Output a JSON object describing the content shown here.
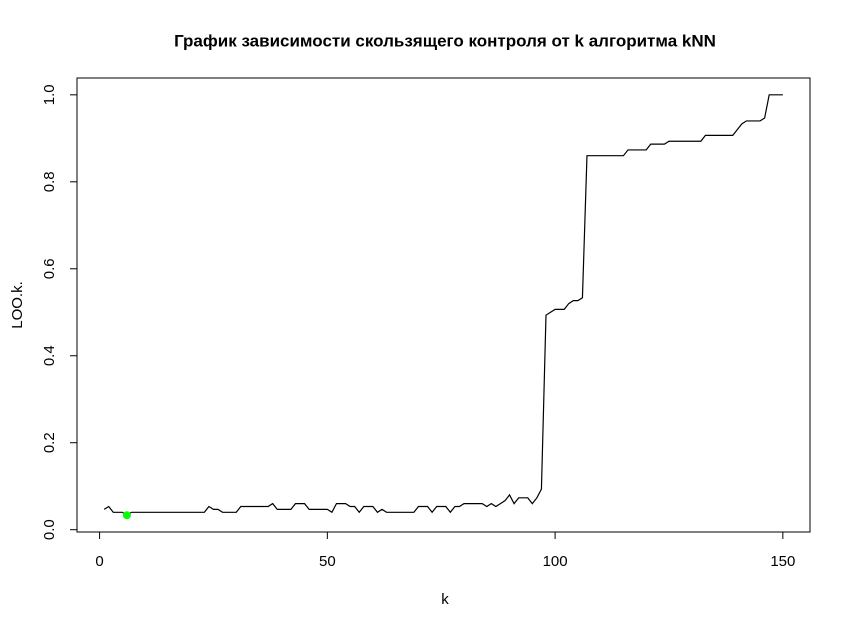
{
  "chart_data": {
    "type": "line",
    "title": "График зависимости скользящего контроля от k алгоритма kNN",
    "x_label": "k",
    "y_label": "LOO.k.",
    "x": [
      1,
      2,
      3,
      4,
      5,
      6,
      7,
      8,
      9,
      10,
      11,
      12,
      13,
      14,
      15,
      16,
      17,
      18,
      19,
      20,
      21,
      22,
      23,
      24,
      25,
      26,
      27,
      28,
      29,
      30,
      31,
      32,
      33,
      34,
      35,
      36,
      37,
      38,
      39,
      40,
      41,
      42,
      43,
      44,
      45,
      46,
      47,
      48,
      49,
      50,
      51,
      52,
      53,
      54,
      55,
      56,
      57,
      58,
      59,
      60,
      61,
      62,
      63,
      64,
      65,
      66,
      67,
      68,
      69,
      70,
      71,
      72,
      73,
      74,
      75,
      76,
      77,
      78,
      79,
      80,
      81,
      82,
      83,
      84,
      85,
      86,
      87,
      88,
      89,
      90,
      91,
      92,
      93,
      94,
      95,
      96,
      97,
      98,
      99,
      100,
      101,
      102,
      103,
      104,
      105,
      106,
      107,
      108,
      109,
      110,
      111,
      112,
      113,
      114,
      115,
      116,
      117,
      118,
      119,
      120,
      121,
      122,
      123,
      124,
      125,
      126,
      127,
      128,
      129,
      130,
      131,
      132,
      133,
      134,
      135,
      136,
      137,
      138,
      139,
      140,
      141,
      142,
      143,
      144,
      145,
      146,
      147,
      148,
      149,
      150
    ],
    "series": [
      {
        "color": "#000000",
        "values": [
          0.0467,
          0.0533,
          0.04,
          0.04,
          0.04,
          0.0333,
          0.04,
          0.04,
          0.04,
          0.04,
          0.04,
          0.04,
          0.04,
          0.04,
          0.04,
          0.04,
          0.04,
          0.04,
          0.04,
          0.04,
          0.04,
          0.04,
          0.04,
          0.0533,
          0.0467,
          0.0467,
          0.04,
          0.04,
          0.04,
          0.04,
          0.0533,
          0.0533,
          0.0533,
          0.0533,
          0.0533,
          0.0533,
          0.0533,
          0.06,
          0.0467,
          0.0467,
          0.0467,
          0.0467,
          0.06,
          0.06,
          0.06,
          0.0467,
          0.0467,
          0.0467,
          0.0467,
          0.0467,
          0.04,
          0.06,
          0.06,
          0.06,
          0.0533,
          0.0533,
          0.04,
          0.0533,
          0.0533,
          0.0533,
          0.04,
          0.0467,
          0.04,
          0.04,
          0.04,
          0.04,
          0.04,
          0.04,
          0.04,
          0.0533,
          0.0533,
          0.0533,
          0.04,
          0.0533,
          0.0533,
          0.0533,
          0.04,
          0.0533,
          0.0533,
          0.06,
          0.06,
          0.06,
          0.06,
          0.06,
          0.0533,
          0.06,
          0.0533,
          0.06,
          0.0667,
          0.08,
          0.06,
          0.0733,
          0.0733,
          0.0733,
          0.06,
          0.0733,
          0.0933,
          0.4933,
          0.5,
          0.5067,
          0.5067,
          0.5067,
          0.52,
          0.5267,
          0.5267,
          0.5333,
          0.86,
          0.86,
          0.86,
          0.86,
          0.86,
          0.86,
          0.86,
          0.86,
          0.86,
          0.8733,
          0.8733,
          0.8733,
          0.8733,
          0.8733,
          0.8867,
          0.8867,
          0.8867,
          0.8867,
          0.8933,
          0.8933,
          0.8933,
          0.8933,
          0.8933,
          0.8933,
          0.8933,
          0.8933,
          0.9067,
          0.9067,
          0.9067,
          0.9067,
          0.9067,
          0.9067,
          0.9067,
          0.92,
          0.9333,
          0.94,
          0.94,
          0.94,
          0.94,
          0.9467,
          1.0,
          1.0,
          1.0,
          1.0
        ]
      }
    ],
    "highlight": {
      "x": 6,
      "y": 0.0333,
      "color": "#00ff00"
    },
    "xlim": [
      -4.96,
      155.96
    ],
    "xticks": [
      0,
      50,
      100,
      150
    ],
    "ylim": [
      -0.0053,
      1.0387
    ],
    "yticks": [
      {
        "value": 0,
        "label": "0.0"
      },
      0.2,
      0.4,
      0.6,
      0.8,
      {
        "value": 1,
        "label": "1.0"
      }
    ]
  }
}
